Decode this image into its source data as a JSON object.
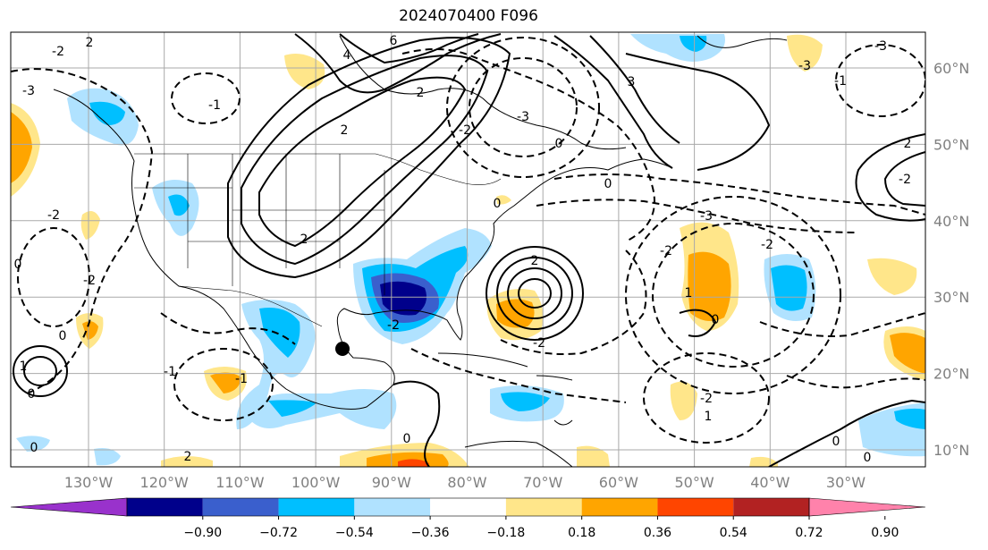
{
  "title": "2024070400 F096",
  "map": {
    "lon_labels": [
      "130°W",
      "120°W",
      "110°W",
      "100°W",
      "90°W",
      "80°W",
      "70°W",
      "60°W",
      "50°W",
      "40°W",
      "30°W"
    ],
    "lat_labels": [
      "10°N",
      "20°N",
      "30°N",
      "40°N",
      "50°N",
      "60°N"
    ],
    "marker": "black-dot"
  },
  "colorbar": {
    "labels": [
      "−0.90",
      "−0.72",
      "−0.54",
      "−0.36",
      "−0.18",
      "0.18",
      "0.36",
      "0.54",
      "0.72",
      "0.90"
    ],
    "colors": [
      "#9932cc",
      "#00008b",
      "#3a5fcd",
      "#00bfff",
      "#b0e2ff",
      "#ffffff",
      "#ffe68a",
      "#ffa500",
      "#ff4500",
      "#b22222",
      "#ff82ab"
    ]
  },
  "contour_labels": [
    "2",
    "-2",
    "-3",
    "-1",
    "6",
    "4",
    "2",
    "-3",
    "-2",
    "-3",
    "3",
    "0",
    "-3",
    "2",
    "-2",
    "-1",
    "0",
    "-2",
    "-2",
    "2",
    "-3",
    "2",
    "2",
    "0",
    "0",
    "-2",
    "1",
    "-2",
    "0",
    "-1",
    "-1",
    "0",
    "-2",
    "0",
    "1",
    "-2",
    "0",
    "-2",
    "0",
    "1",
    "0",
    "0",
    "2"
  ]
}
